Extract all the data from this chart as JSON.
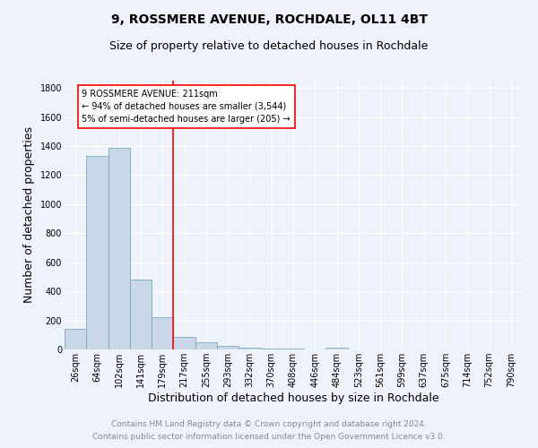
{
  "title_line1": "9, ROSSMERE AVENUE, ROCHDALE, OL11 4BT",
  "title_line2": "Size of property relative to detached houses in Rochdale",
  "xlabel": "Distribution of detached houses by size in Rochdale",
  "ylabel": "Number of detached properties",
  "footnote1": "Contains HM Land Registry data © Crown copyright and database right 2024.",
  "footnote2": "Contains public sector information licensed under the Open Government Licence v3.0.",
  "categories": [
    "26sqm",
    "64sqm",
    "102sqm",
    "141sqm",
    "179sqm",
    "217sqm",
    "255sqm",
    "293sqm",
    "332sqm",
    "370sqm",
    "408sqm",
    "446sqm",
    "484sqm",
    "523sqm",
    "561sqm",
    "599sqm",
    "637sqm",
    "675sqm",
    "714sqm",
    "752sqm",
    "790sqm"
  ],
  "values": [
    140,
    1330,
    1390,
    480,
    225,
    85,
    47,
    22,
    15,
    8,
    5,
    3,
    15,
    0,
    0,
    0,
    0,
    0,
    0,
    0,
    0
  ],
  "bar_color": "#c8d8e8",
  "bar_edge_color": "#7aaabb",
  "vline_index": 4.5,
  "vline_color": "red",
  "annotation_text": "9 ROSSMERE AVENUE: 211sqm\n← 94% of detached houses are smaller (3,544)\n5% of semi-detached houses are larger (205) →",
  "annotation_box_color": "white",
  "annotation_box_edge_color": "red",
  "ylim": [
    0,
    1850
  ],
  "yticks": [
    0,
    200,
    400,
    600,
    800,
    1000,
    1200,
    1400,
    1600,
    1800
  ],
  "bg_color": "#eef2fb",
  "grid_color": "white",
  "title_fontsize": 10,
  "subtitle_fontsize": 9,
  "axis_label_fontsize": 9,
  "tick_fontsize": 7,
  "footnote_fontsize": 6.5,
  "annotation_fontsize": 7
}
